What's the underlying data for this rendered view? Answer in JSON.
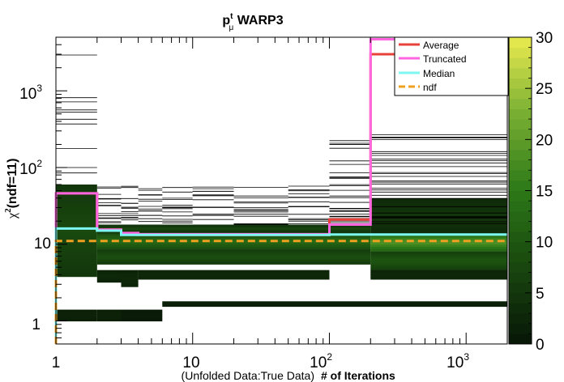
{
  "chart_data": {
    "type": "heatmap",
    "title": {
      "main": "p",
      "superscript": "t",
      "subscript": "μ",
      "suffix": " WARP3"
    },
    "ylabel": {
      "main": "χ",
      "superscript": "2",
      "suffix": "(ndf=11)"
    },
    "xlabel_prefix": "(Unfolded Data:True Data)",
    "xlabel": "# of Iterations",
    "x_scale": "log",
    "y_scale": "log",
    "xlim": [
      1,
      2000
    ],
    "ylim": [
      0.5,
      5000
    ],
    "x_tick_labels": [
      "1",
      "10",
      "10",
      "10"
    ],
    "x_tick_label_exponents": [
      "",
      "",
      "2",
      "3"
    ],
    "x_major_ticks": [
      1,
      10,
      100,
      1000
    ],
    "y_tick_labels": [
      "1",
      "10",
      "10",
      "10"
    ],
    "y_tick_label_exponents": [
      "",
      "",
      "2",
      "3"
    ],
    "y_major_ticks": [
      1,
      10,
      100,
      1000
    ],
    "colorbar": {
      "min": 0,
      "max": 30,
      "tick_labels": [
        "0",
        "5",
        "10",
        "15",
        "20",
        "25",
        "30"
      ],
      "tick_values": [
        0,
        5,
        10,
        15,
        20,
        25,
        30
      ]
    },
    "x_bin_edges": [
      1,
      2,
      3,
      4,
      6,
      10,
      20,
      50,
      100,
      200,
      2000
    ],
    "heat_bands": [
      {
        "x": [
          1,
          2
        ],
        "y": [
          3.8,
          60
        ],
        "count": 8
      },
      {
        "x": [
          1,
          2
        ],
        "y": [
          1.0,
          1.4
        ],
        "count": 2
      },
      {
        "x": [
          2,
          200
        ],
        "y": [
          8.5,
          14
        ],
        "count": 13
      },
      {
        "x": [
          2,
          200
        ],
        "y": [
          5.5,
          8.5
        ],
        "count": 9
      },
      {
        "x": [
          2,
          200
        ],
        "y": [
          14,
          18
        ],
        "count": 7
      },
      {
        "x": [
          2,
          3
        ],
        "y": [
          1.0,
          1.4
        ],
        "count": 2
      },
      {
        "x": [
          2,
          3
        ],
        "y": [
          3.2,
          4.6
        ],
        "count": 3
      },
      {
        "x": [
          3,
          6
        ],
        "y": [
          1.0,
          1.4
        ],
        "count": 1
      },
      {
        "x": [
          3,
          4
        ],
        "y": [
          2.8,
          4.6
        ],
        "count": 3
      },
      {
        "x": [
          4,
          100
        ],
        "y": [
          3.5,
          4.6
        ],
        "count": 3
      },
      {
        "x": [
          6,
          2000
        ],
        "y": [
          1.55,
          1.8
        ],
        "count": 2
      },
      {
        "x": [
          200,
          2000
        ],
        "y": [
          8.0,
          14
        ],
        "count": 19
      },
      {
        "x": [
          200,
          2000
        ],
        "y": [
          4.6,
          8.0
        ],
        "count": 10
      },
      {
        "x": [
          200,
          2000
        ],
        "y": [
          14,
          40
        ],
        "count": 5
      },
      {
        "x": [
          200,
          2000
        ],
        "y": [
          3.5,
          4.6
        ],
        "count": 3
      }
    ],
    "series": [
      {
        "name": "Average",
        "color": "#e8413a",
        "x": [
          1,
          2,
          3,
          4,
          100,
          200,
          2000
        ],
        "y": [
          46,
          15.5,
          13.8,
          13.2,
          21,
          3000,
          3000
        ]
      },
      {
        "name": "Truncated",
        "color": "#ff66e0",
        "x": [
          1,
          2,
          3,
          4,
          100,
          200,
          2000
        ],
        "y": [
          46,
          15.5,
          14,
          13.5,
          18,
          4700,
          4700
        ]
      },
      {
        "name": "Median",
        "color": "#7df7f2",
        "x": [
          1,
          2,
          3,
          100,
          200,
          2000
        ],
        "y": [
          16,
          15,
          13.2,
          13.4,
          13.4,
          13.4
        ]
      },
      {
        "name": "ndf",
        "color": "#f0a020",
        "x": [
          1,
          2000
        ],
        "y": [
          11,
          11
        ]
      }
    ],
    "legend": [
      "Average",
      "Truncated",
      "Median",
      "ndf"
    ],
    "legend_position": "top-right"
  }
}
